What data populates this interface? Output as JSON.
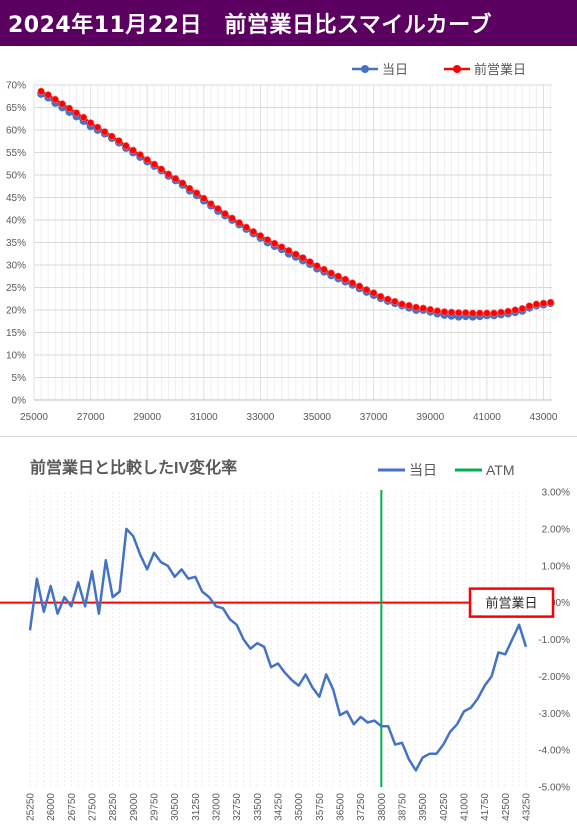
{
  "header": {
    "title": "2024年11月22日　前営業日比スマイルカーブ"
  },
  "colors": {
    "header_bg": "#5b0060",
    "today": "#4472c4",
    "prev": "#ff0000",
    "atm": "#00b050",
    "zero_line": "#ff0000"
  },
  "chart_data": [
    {
      "type": "line",
      "title": "",
      "xlim": [
        25000,
        43300
      ],
      "ylim": [
        0,
        70
      ],
      "x_ticks": [
        "25000",
        "27000",
        "29000",
        "31000",
        "33000",
        "35000",
        "37000",
        "39000",
        "41000",
        "43000"
      ],
      "y_ticks": [
        "0%",
        "5%",
        "10%",
        "15%",
        "20%",
        "25%",
        "30%",
        "35%",
        "40%",
        "45%",
        "50%",
        "55%",
        "60%",
        "65%",
        "70%"
      ],
      "legend": {
        "position": "top-right",
        "entries": [
          "当日",
          "前営業日"
        ]
      },
      "grid": true,
      "x": [
        25250,
        25500,
        25750,
        26000,
        26250,
        26500,
        26750,
        27000,
        27250,
        27500,
        27750,
        28000,
        28250,
        28500,
        28750,
        29000,
        29250,
        29500,
        29750,
        30000,
        30250,
        30500,
        30750,
        31000,
        31250,
        31500,
        31750,
        32000,
        32250,
        32500,
        32750,
        33000,
        33250,
        33500,
        33750,
        34000,
        34250,
        34500,
        34750,
        35000,
        35250,
        35500,
        35750,
        36000,
        36250,
        36500,
        36750,
        37000,
        37250,
        37500,
        37750,
        38000,
        38250,
        38500,
        38750,
        39000,
        39250,
        39500,
        39750,
        40000,
        40250,
        40500,
        40750,
        41000,
        41250,
        41500,
        41750,
        42000,
        42250,
        42500,
        42750,
        43000,
        43250
      ],
      "series": [
        {
          "name": "当日",
          "values": [
            68.0,
            67.2,
            66.0,
            65.0,
            64.0,
            63.0,
            62.0,
            60.8,
            60.0,
            59.2,
            58.2,
            57.2,
            56.0,
            55.0,
            54.0,
            53.0,
            52.0,
            51.0,
            49.8,
            48.8,
            47.8,
            46.5,
            45.5,
            44.3,
            43.2,
            42.0,
            41.0,
            40.0,
            39.0,
            38.0,
            37.0,
            36.0,
            35.0,
            34.2,
            33.5,
            32.5,
            31.8,
            31.0,
            30.2,
            29.2,
            28.5,
            27.7,
            27.0,
            26.3,
            25.6,
            24.8,
            24.0,
            23.3,
            22.6,
            22.0,
            21.5,
            21.0,
            20.5,
            20.0,
            20.0,
            19.6,
            19.2,
            18.9,
            18.7,
            18.5,
            18.6,
            18.5,
            18.6,
            18.8,
            18.8,
            19.0,
            19.2,
            19.5,
            19.8,
            20.5,
            21.0,
            21.2,
            21.5
          ]
        },
        {
          "name": "前営業日",
          "values": [
            68.6,
            67.8,
            66.8,
            65.8,
            64.8,
            63.8,
            62.8,
            61.6,
            60.6,
            59.6,
            58.6,
            57.6,
            56.5,
            55.5,
            54.5,
            53.4,
            52.4,
            51.3,
            50.2,
            49.2,
            48.2,
            47.0,
            46.0,
            44.8,
            43.6,
            42.5,
            41.4,
            40.4,
            39.4,
            38.4,
            37.4,
            36.5,
            35.6,
            34.8,
            34.0,
            33.2,
            32.4,
            31.6,
            30.7,
            29.8,
            29.0,
            28.2,
            27.5,
            26.8,
            26.0,
            25.3,
            24.5,
            23.8,
            23.0,
            22.4,
            21.9,
            21.3,
            21.0,
            20.6,
            20.4,
            20.1,
            19.8,
            19.6,
            19.5,
            19.4,
            19.4,
            19.3,
            19.3,
            19.3,
            19.3,
            19.5,
            19.7,
            20.0,
            20.3,
            20.9,
            21.3,
            21.5,
            21.7
          ]
        }
      ]
    },
    {
      "type": "line",
      "title": "前営業日と比較したIV変化率",
      "ylim": [
        -5.0,
        3.0
      ],
      "y_ticks": [
        "3.00%",
        "2.00%",
        "1.00%",
        "0.00%",
        "-1.00%",
        "-2.00%",
        "-3.00%",
        "-4.00%",
        "-5.00%"
      ],
      "x_ticks": [
        "25250",
        "26000",
        "26750",
        "27500",
        "28250",
        "29000",
        "29750",
        "30500",
        "31250",
        "32000",
        "32750",
        "33500",
        "34250",
        "35000",
        "35750",
        "36500",
        "37250",
        "38000",
        "38750",
        "39500",
        "40250",
        "41000",
        "41750",
        "42500",
        "43250"
      ],
      "legend": {
        "position": "top-right",
        "entries": [
          "当日",
          "ATM"
        ]
      },
      "atm_x": 38000,
      "annotation": "前営業日",
      "x": [
        25250,
        25500,
        25750,
        26000,
        26250,
        26500,
        26750,
        27000,
        27250,
        27500,
        27750,
        28000,
        28250,
        28500,
        28750,
        29000,
        29250,
        29500,
        29750,
        30000,
        30250,
        30500,
        30750,
        31000,
        31250,
        31500,
        31750,
        32000,
        32250,
        32500,
        32750,
        33000,
        33250,
        33500,
        33750,
        34000,
        34250,
        34500,
        34750,
        35000,
        35250,
        35500,
        35750,
        36000,
        36250,
        36500,
        36750,
        37000,
        37250,
        37500,
        37750,
        38000,
        38250,
        38500,
        38750,
        39000,
        39250,
        39500,
        39750,
        40000,
        40250,
        40500,
        40750,
        41000,
        41250,
        41500,
        41750,
        42000,
        42250,
        42500,
        42750,
        43000,
        43250
      ],
      "series": [
        {
          "name": "当日",
          "values": [
            -0.75,
            0.65,
            -0.25,
            0.45,
            -0.3,
            0.15,
            -0.1,
            0.55,
            -0.1,
            0.85,
            -0.3,
            1.15,
            0.15,
            0.3,
            2.0,
            1.8,
            1.3,
            0.9,
            1.35,
            1.1,
            1.0,
            0.7,
            0.9,
            0.65,
            0.7,
            0.3,
            0.15,
            -0.1,
            -0.15,
            -0.45,
            -0.6,
            -1.0,
            -1.25,
            -1.1,
            -1.2,
            -1.75,
            -1.65,
            -1.9,
            -2.1,
            -2.25,
            -1.95,
            -2.3,
            -2.55,
            -1.95,
            -2.35,
            -3.05,
            -2.95,
            -3.3,
            -3.1,
            -3.25,
            -3.2,
            -3.35,
            -3.35,
            -3.85,
            -3.8,
            -4.25,
            -4.55,
            -4.2,
            -4.1,
            -4.1,
            -3.85,
            -3.5,
            -3.3,
            -2.95,
            -2.85,
            -2.6,
            -2.25,
            -2.0,
            -1.35,
            -1.4,
            -1.0,
            -0.6,
            -1.2
          ]
        }
      ]
    }
  ]
}
